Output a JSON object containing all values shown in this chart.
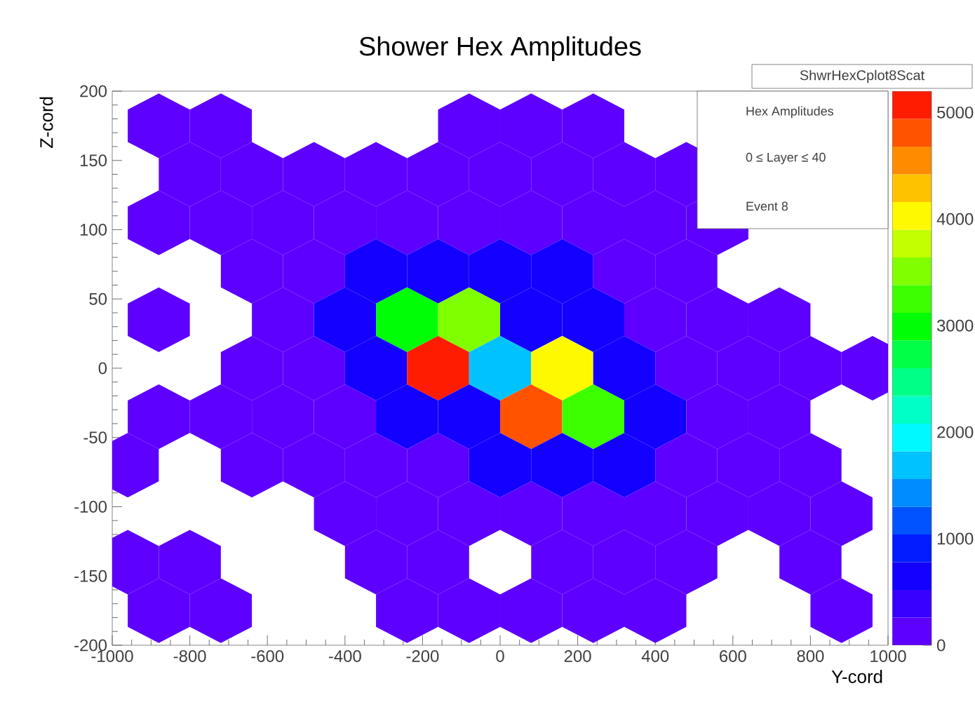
{
  "chart_data": {
    "type": "scatter",
    "title": "Shower Hex Amplitudes",
    "xlabel": "Y-cord",
    "ylabel": "Z-cord",
    "x": [
      -880,
      -720,
      -80,
      80,
      240,
      -800,
      -640,
      -480,
      -320,
      -160,
      0,
      160,
      320,
      480,
      -880,
      -720,
      -560,
      -400,
      -240,
      -80,
      80,
      240,
      400,
      560,
      -640,
      -480,
      -320,
      -160,
      0,
      160,
      320,
      480,
      -880,
      -560,
      -400,
      -240,
      -80,
      80,
      240,
      400,
      560,
      720,
      -640,
      -480,
      -320,
      -160,
      0,
      160,
      320,
      480,
      640,
      800,
      960,
      -880,
      -720,
      -560,
      -400,
      -240,
      -80,
      80,
      240,
      400,
      560,
      720,
      -960,
      -640,
      -480,
      -320,
      -160,
      0,
      160,
      320,
      480,
      640,
      800,
      -400,
      -240,
      -80,
      80,
      240,
      400,
      560,
      720,
      880,
      -960,
      -800,
      -320,
      -160,
      160,
      320,
      480,
      800,
      -880,
      -720,
      -240,
      -80,
      80,
      240,
      400,
      880
    ],
    "values": [
      175,
      175,
      175,
      175,
      175,
      140,
      140,
      140,
      140,
      140,
      140,
      140,
      140,
      140,
      105,
      105,
      105,
      105,
      105,
      105,
      105,
      105,
      105,
      105,
      70,
      70,
      70,
      70,
      70,
      70,
      70,
      70,
      35,
      35,
      35,
      35,
      35,
      35,
      35,
      35,
      35,
      35,
      0,
      0,
      0,
      0,
      0,
      0,
      0,
      0,
      0,
      0,
      0,
      -35,
      -35,
      -35,
      -35,
      -35,
      -35,
      -35,
      -35,
      -35,
      -35,
      -35,
      -70,
      -70,
      -70,
      -70,
      -70,
      -70,
      -70,
      -70,
      -70,
      -70,
      -70,
      -105,
      -105,
      -105,
      -105,
      -105,
      -105,
      -105,
      -105,
      -105,
      -140,
      -140,
      -140,
      -140,
      -140,
      -140,
      -140,
      -140,
      -175,
      -175,
      -175,
      -175,
      -175,
      -175,
      -175,
      -175
    ],
    "cvalues": [
      100,
      100,
      100,
      100,
      100,
      100,
      100,
      100,
      100,
      100,
      100,
      100,
      100,
      100,
      100,
      100,
      100,
      100,
      100,
      100,
      100,
      100,
      100,
      100,
      100,
      100,
      650,
      650,
      650,
      650,
      100,
      100,
      100,
      100,
      650,
      3000,
      3500,
      650,
      650,
      100,
      100,
      100,
      100,
      100,
      650,
      5100,
      1700,
      4100,
      650,
      100,
      100,
      100,
      100,
      100,
      100,
      100,
      100,
      650,
      650,
      4700,
      3250,
      650,
      100,
      100,
      100,
      100,
      100,
      100,
      100,
      650,
      650,
      650,
      100,
      100,
      100,
      100,
      100,
      100,
      100,
      100,
      100,
      100,
      100,
      100,
      100,
      100,
      100,
      100,
      100,
      100,
      100,
      100,
      100,
      100,
      100,
      100,
      100,
      100,
      100,
      100
    ],
    "xlim": [
      -1000,
      1000
    ],
    "ylim": [
      -200,
      200
    ],
    "xticks": [
      -1000,
      -800,
      -600,
      -400,
      -200,
      0,
      200,
      400,
      600,
      800,
      1000
    ],
    "yticks": [
      -200,
      -150,
      -100,
      -50,
      0,
      50,
      100,
      150,
      200
    ],
    "clim": [
      0,
      5200
    ],
    "cticks": [
      0,
      1000,
      2000,
      3000,
      4000,
      5000
    ],
    "annotations": [
      "ShwrHexCplot8Scat",
      "Hex Amplitudes",
      "0 ≤ Layer ≤ 40",
      "Event 8"
    ]
  }
}
